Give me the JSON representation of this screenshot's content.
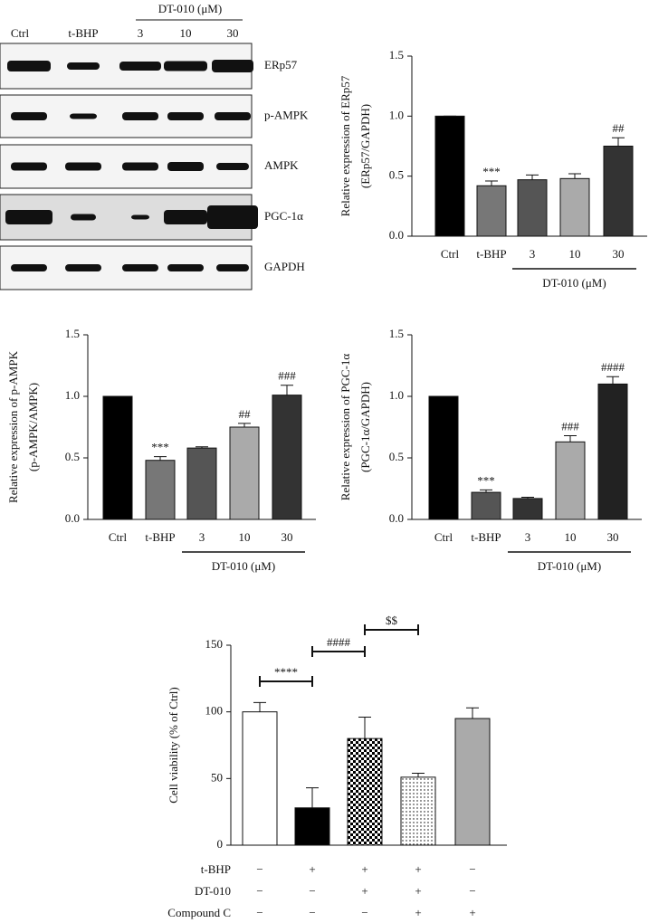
{
  "blot": {
    "lanes": [
      "Ctrl",
      "t-BHP",
      "3",
      "10",
      "30"
    ],
    "group_label": "DT-010 (μM)",
    "proteins": [
      "ERp57",
      "p-AMPK",
      "AMPK",
      "PGC-1α",
      "GAPDH"
    ]
  },
  "chart_data": [
    {
      "type": "bar",
      "ylabel": [
        "Relative expression of ERp57",
        "(ERp57/GAPDH)"
      ],
      "categories": [
        "Ctrl",
        "t-BHP",
        "3",
        "10",
        "30"
      ],
      "group_label": "DT-010 (μM)",
      "values": [
        1.0,
        0.42,
        0.47,
        0.48,
        0.75
      ],
      "errors": [
        0,
        0.04,
        0.04,
        0.04,
        0.07
      ],
      "annotations": [
        null,
        "***",
        null,
        null,
        "##"
      ],
      "colors": [
        "#000000",
        "#777777",
        "#555555",
        "#aaaaaa",
        "#333333"
      ],
      "ylim": [
        0,
        1.5
      ],
      "yticks": [
        {
          "value": 0,
          "label": "0.0"
        },
        0.5,
        {
          "value": 1,
          "label": "1.0"
        },
        1.5
      ]
    },
    {
      "type": "bar",
      "ylabel": [
        "Relative expression of p-AMPK",
        "(p-AMPK/AMPK)"
      ],
      "categories": [
        "Ctrl",
        "t-BHP",
        "3",
        "10",
        "30"
      ],
      "group_label": "DT-010 (μM)",
      "values": [
        1.0,
        0.48,
        0.58,
        0.75,
        1.01
      ],
      "errors": [
        0,
        0.03,
        0.01,
        0.03,
        0.08
      ],
      "annotations": [
        null,
        "***",
        null,
        "##",
        "###"
      ],
      "colors": [
        "#000000",
        "#777777",
        "#555555",
        "#aaaaaa",
        "#333333"
      ],
      "ylim": [
        0,
        1.5
      ],
      "yticks": [
        {
          "value": 0,
          "label": "0.0"
        },
        0.5,
        {
          "value": 1,
          "label": "1.0"
        },
        1.5
      ]
    },
    {
      "type": "bar",
      "ylabel": [
        "Relative expression of PGC-1α",
        "(PGC-1α/GAPDH)"
      ],
      "categories": [
        "Ctrl",
        "t-BHP",
        "3",
        "10",
        "30"
      ],
      "group_label": "DT-010 (μM)",
      "values": [
        1.0,
        0.22,
        0.17,
        0.63,
        1.1
      ],
      "errors": [
        0,
        0.02,
        0.01,
        0.05,
        0.06
      ],
      "annotations": [
        null,
        "***",
        null,
        "###",
        "####"
      ],
      "colors": [
        "#000000",
        "#555555",
        "#333333",
        "#aaaaaa",
        "#222222"
      ],
      "ylim": [
        0,
        1.5
      ],
      "yticks": [
        {
          "value": 0,
          "label": "0.0"
        },
        0.5,
        {
          "value": 1,
          "label": "1.0"
        },
        1.5
      ]
    },
    {
      "type": "bar",
      "ylabel": [
        "Cell viability (% of Ctrl)"
      ],
      "values": [
        100,
        28,
        80,
        51,
        95
      ],
      "errors": [
        7,
        15,
        16,
        3,
        8
      ],
      "colors": [
        "#ffffff",
        "#000000",
        "checker",
        "dots",
        "#aaaaaa"
      ],
      "comparisons": [
        "****",
        "####",
        "$$"
      ],
      "treatments": [
        {
          "label": "t-BHP",
          "marks": [
            "−",
            "+",
            "+",
            "+",
            "−"
          ]
        },
        {
          "label": "DT-010",
          "marks": [
            "−",
            "−",
            "+",
            "+",
            "−"
          ]
        },
        {
          "label": "Compound C",
          "marks": [
            "−",
            "−",
            "−",
            "+",
            "+"
          ]
        }
      ],
      "ylim": [
        0,
        150
      ],
      "yticks": [
        0,
        50,
        100,
        150
      ]
    }
  ]
}
